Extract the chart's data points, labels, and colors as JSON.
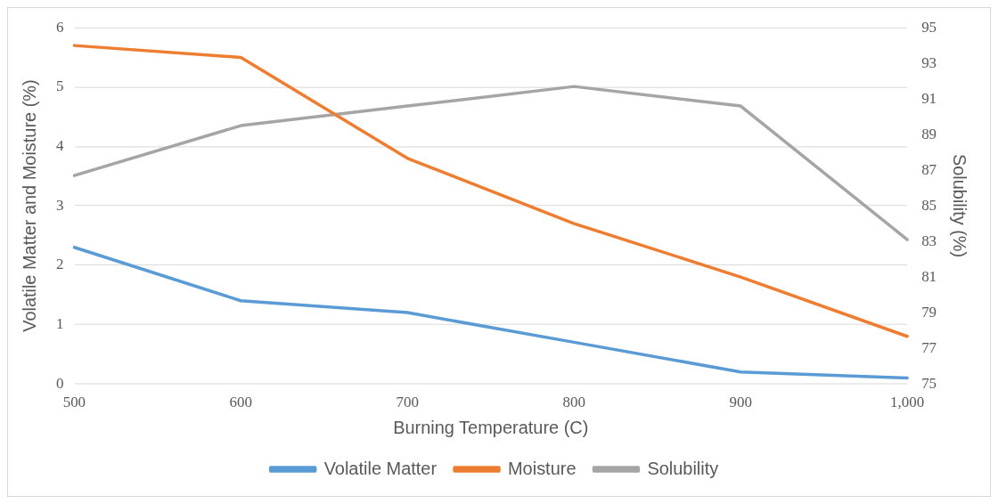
{
  "chart_data": {
    "type": "line",
    "xlabel": "Burning Temperature (C)",
    "ylabel": "Volatile Matter and Moisture (%)",
    "y2label": "Solubility (%)",
    "categories": [
      "500",
      "600",
      "700",
      "800",
      "900",
      "1,000"
    ],
    "series": [
      {
        "name": "Volatile Matter",
        "color": "#5b9bd5",
        "values": [
          2.3,
          1.4,
          1.2,
          0.7,
          0.2,
          0.1
        ]
      },
      {
        "name": "Moisture",
        "color": "#ed7d31",
        "values": [
          5.7,
          5.5,
          3.8,
          2.7,
          1.8,
          0.8
        ]
      },
      {
        "name": "Solubility",
        "color": "#a5a5a5",
        "axis": "y2",
        "values": [
          86.7,
          89.5,
          90.6,
          91.7,
          90.6,
          83.1
        ]
      }
    ],
    "ylim": [
      0,
      6
    ],
    "yticks": [
      0,
      1,
      2,
      3,
      4,
      5,
      6
    ],
    "y2lim": [
      75,
      95
    ],
    "y2ticks": [
      75,
      77,
      79,
      81,
      83,
      85,
      87,
      89,
      91,
      93,
      95
    ],
    "grid": "y",
    "legend": "bottom",
    "marker": "none",
    "line_style": "solid"
  }
}
